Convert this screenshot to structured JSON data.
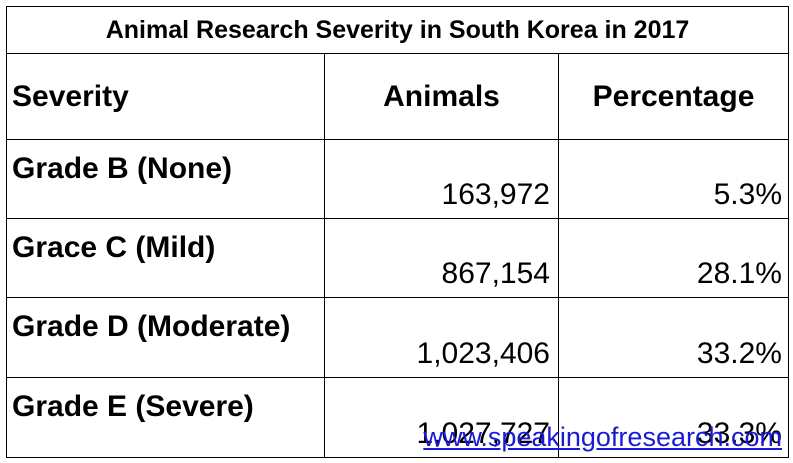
{
  "chart_data": {
    "type": "table",
    "title": "Animal Research Severity in South Korea in 2017",
    "columns": [
      "Severity",
      "Animals",
      "Percentage"
    ],
    "rows": [
      [
        "Grade B (None)",
        "163,972",
        "5.3%"
      ],
      [
        "Grace C (Mild)",
        "867,154",
        "28.1%"
      ],
      [
        "Grade D (Moderate)",
        "1,023,406",
        "33.2%"
      ],
      [
        "Grade E (Severe)",
        "1,027,727",
        "33.3%"
      ]
    ],
    "values": [
      {
        "severity": "Grade B (None)",
        "animals": 163972,
        "percentage": 5.3
      },
      {
        "severity": "Grace C (Mild)",
        "animals": 867154,
        "percentage": 28.1
      },
      {
        "severity": "Grade D (Moderate)",
        "animals": 1023406,
        "percentage": 33.2
      },
      {
        "severity": "Grade E (Severe)",
        "animals": 1027727,
        "percentage": 33.3
      }
    ]
  },
  "source": "www.speakingofresearch.com",
  "colors": {
    "border": "#000000",
    "text": "#000000",
    "link": "#1a1ad4",
    "background": "#ffffff"
  }
}
